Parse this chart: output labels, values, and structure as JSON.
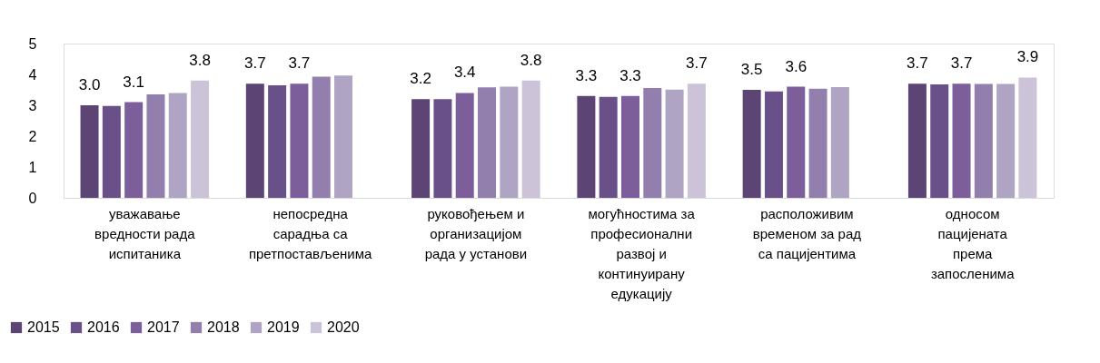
{
  "chart_data": {
    "type": "bar",
    "categories": [
      "уважавање вредности рада испитаника",
      "непосредна сарадња са претпостављенима",
      "руковођењем и организацијом рада у установи",
      "могућностима за професионални развој и континуирану едукацију",
      "расположивим временом за рад са пацијентима",
      "односом пацијената према запосленима"
    ],
    "series": [
      {
        "name": "2015",
        "color": "#5c4575",
        "values": [
          3.0,
          3.7,
          3.2,
          3.3,
          3.5,
          3.7
        ],
        "value_labels": [
          "3.0",
          "3.7",
          "3.2",
          "3.3",
          "3.5",
          "3.7"
        ]
      },
      {
        "name": "2016",
        "color": "#6a5089",
        "values": [
          2.98,
          3.65,
          3.2,
          3.27,
          3.45,
          3.68
        ]
      },
      {
        "name": "2017",
        "color": "#7b5e9a",
        "values": [
          3.1,
          3.7,
          3.4,
          3.3,
          3.6,
          3.7
        ],
        "value_labels": [
          "3.1",
          "3.7",
          "3.4",
          "3.3",
          "3.6",
          "3.7"
        ]
      },
      {
        "name": "2018",
        "color": "#927fae",
        "values": [
          3.35,
          3.93,
          3.58,
          3.56,
          3.54,
          3.69
        ]
      },
      {
        "name": "2019",
        "color": "#b0a4c4",
        "values": [
          3.4,
          3.96,
          3.6,
          3.51,
          3.59,
          3.69
        ]
      },
      {
        "name": "2020",
        "color": "#ccc3d9",
        "values": [
          3.8,
          null,
          3.8,
          3.7,
          null,
          3.9
        ],
        "value_labels": [
          "3.8",
          null,
          "3.8",
          "3.7",
          null,
          "3.9"
        ]
      }
    ],
    "ylim": [
      0,
      5
    ],
    "yticks": [
      0,
      1,
      2,
      3,
      4,
      5
    ],
    "grid": false,
    "legend": "bottom left"
  }
}
